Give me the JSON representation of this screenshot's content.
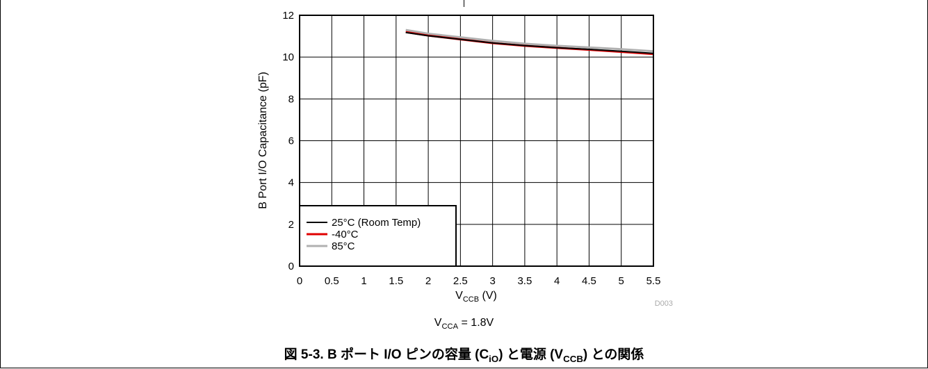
{
  "figure": {
    "source_code": "D003",
    "condition": {
      "prefix": "V",
      "sub": "CCA",
      "suffix": " = 1.8V"
    },
    "caption": {
      "part1": "図 5-3. B ポート I/O ピンの容量 (C",
      "sub1": "iO",
      "part2": ") と電源 (V",
      "sub2": "CCB",
      "part3": ") との関係"
    }
  },
  "chart_data": {
    "type": "line",
    "xlabel_main": "V",
    "xlabel_sub": "CCB",
    "xlabel_unit": " (V)",
    "ylabel": "B Port I/O Capacitance (pF)",
    "xlim": [
      0,
      5.5
    ],
    "ylim": [
      0,
      12
    ],
    "x_ticks": [
      {
        "v": 0,
        "label": "0"
      },
      {
        "v": 0.5,
        "label": "0.5"
      },
      {
        "v": 1,
        "label": "1"
      },
      {
        "v": 1.5,
        "label": "1.5"
      },
      {
        "v": 2,
        "label": "2"
      },
      {
        "v": 2.5,
        "label": "2.5"
      },
      {
        "v": 3,
        "label": "3"
      },
      {
        "v": 3.5,
        "label": "3.5"
      },
      {
        "v": 4,
        "label": "4"
      },
      {
        "v": 4.5,
        "label": "4.5"
      },
      {
        "v": 5,
        "label": "5"
      },
      {
        "v": 5.5,
        "label": "5.5"
      }
    ],
    "y_ticks": [
      {
        "v": 0,
        "label": "0"
      },
      {
        "v": 2,
        "label": "2"
      },
      {
        "v": 4,
        "label": "4"
      },
      {
        "v": 6,
        "label": "6"
      },
      {
        "v": 8,
        "label": "8"
      },
      {
        "v": 10,
        "label": "10"
      },
      {
        "v": 12,
        "label": "12"
      }
    ],
    "grid": true,
    "legend_position": "bottom-left",
    "series": [
      {
        "name": "25°C (Room Temp)",
        "color": "#000000",
        "x": [
          1.65,
          2.0,
          2.5,
          3.0,
          3.5,
          4.0,
          4.5,
          5.0,
          5.5
        ],
        "y": [
          11.18,
          11.02,
          10.85,
          10.68,
          10.55,
          10.45,
          10.37,
          10.28,
          10.18
        ]
      },
      {
        "name": "-40°C",
        "color": "#e00000",
        "x": [
          1.65,
          2.0,
          2.5,
          3.0,
          3.5,
          4.0,
          4.5,
          5.0,
          5.5
        ],
        "y": [
          11.2,
          11.03,
          10.85,
          10.67,
          10.54,
          10.44,
          10.35,
          10.25,
          10.15
        ]
      },
      {
        "name": "85°C",
        "color": "#b0b0b0",
        "x": [
          1.65,
          2.0,
          2.5,
          3.0,
          3.5,
          4.0,
          4.5,
          5.0,
          5.5
        ],
        "y": [
          11.3,
          11.12,
          10.95,
          10.78,
          10.64,
          10.54,
          10.46,
          10.38,
          10.28
        ]
      }
    ]
  }
}
